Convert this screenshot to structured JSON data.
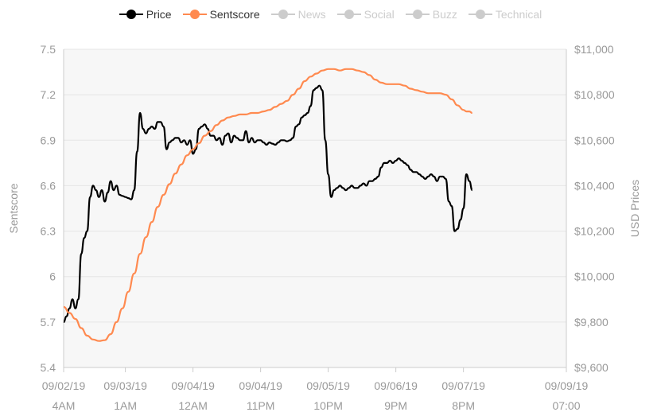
{
  "chart_data": {
    "type": "line",
    "legend": {
      "placement": "top-center",
      "items": [
        {
          "name": "Price",
          "color": "#000000",
          "active": true
        },
        {
          "name": "Sentscore",
          "color": "#ff8a50",
          "active": true
        },
        {
          "name": "News",
          "color": "#cccccc",
          "active": false
        },
        {
          "name": "Social",
          "color": "#cccccc",
          "active": false
        },
        {
          "name": "Buzz",
          "color": "#cccccc",
          "active": false
        },
        {
          "name": "Technical",
          "color": "#cccccc",
          "active": false
        }
      ]
    },
    "y_left": {
      "label": "Sentscore",
      "range": [
        5.4,
        7.5
      ],
      "ticks": [
        "7.5",
        "7.2",
        "6.9",
        "6.6",
        "6.3",
        "6",
        "5.7",
        "5.4"
      ]
    },
    "y_right": {
      "label": "USD Prices",
      "range": [
        9600,
        11000
      ],
      "ticks": [
        "$11,000",
        "$10,800",
        "$10,600",
        "$10,400",
        "$10,200",
        "$10,000",
        "$9,800",
        "$9,600"
      ]
    },
    "x_ticks": [
      {
        "line1": "09/02/19",
        "line2": "4AM",
        "t": 0
      },
      {
        "line1": "09/03/19",
        "line2": "1AM",
        "t": 21
      },
      {
        "line1": "09/04/19",
        "line2": "12AM",
        "t": 44
      },
      {
        "line1": "09/04/19",
        "line2": "11PM",
        "t": 67
      },
      {
        "line1": "09/05/19",
        "line2": "10PM",
        "t": 90
      },
      {
        "line1": "09/06/19",
        "line2": "9PM",
        "t": 113
      },
      {
        "line1": "09/07/19",
        "line2": "8PM",
        "t": 136
      },
      {
        "line1": "09/09/19",
        "line2": "07:00",
        "t": 171
      }
    ],
    "grid": true,
    "series": [
      {
        "name": "Price",
        "color": "#000000",
        "axis": "right",
        "points": [
          [
            0,
            9800
          ],
          [
            1,
            9825
          ],
          [
            2,
            9860
          ],
          [
            3,
            9900
          ],
          [
            4,
            9860
          ],
          [
            5,
            9900
          ],
          [
            6,
            10100
          ],
          [
            7,
            10170
          ],
          [
            8,
            10200
          ],
          [
            9,
            10350
          ],
          [
            10,
            10400
          ],
          [
            11,
            10380
          ],
          [
            12,
            10350
          ],
          [
            13,
            10380
          ],
          [
            14,
            10330
          ],
          [
            15,
            10370
          ],
          [
            16,
            10420
          ],
          [
            17,
            10380
          ],
          [
            18,
            10400
          ],
          [
            19,
            10360
          ],
          [
            20,
            10355
          ],
          [
            21,
            10350
          ],
          [
            22,
            10345
          ],
          [
            23,
            10340
          ],
          [
            24,
            10380
          ],
          [
            25,
            10550
          ],
          [
            26,
            10720
          ],
          [
            27,
            10650
          ],
          [
            28,
            10630
          ],
          [
            29,
            10650
          ],
          [
            30,
            10660
          ],
          [
            31,
            10650
          ],
          [
            32,
            10680
          ],
          [
            33,
            10680
          ],
          [
            34,
            10660
          ],
          [
            35,
            10560
          ],
          [
            36,
            10590
          ],
          [
            37,
            10600
          ],
          [
            38,
            10610
          ],
          [
            39,
            10610
          ],
          [
            40,
            10590
          ],
          [
            41,
            10600
          ],
          [
            42,
            10580
          ],
          [
            43,
            10600
          ],
          [
            44,
            10540
          ],
          [
            45,
            10560
          ],
          [
            46,
            10650
          ],
          [
            47,
            10660
          ],
          [
            48,
            10670
          ],
          [
            49,
            10650
          ],
          [
            50,
            10620
          ],
          [
            51,
            10620
          ],
          [
            52,
            10600
          ],
          [
            53,
            10610
          ],
          [
            54,
            10580
          ],
          [
            55,
            10620
          ],
          [
            56,
            10630
          ],
          [
            57,
            10590
          ],
          [
            58,
            10620
          ],
          [
            59,
            10610
          ],
          [
            60,
            10600
          ],
          [
            61,
            10600
          ],
          [
            62,
            10640
          ],
          [
            63,
            10590
          ],
          [
            64,
            10610
          ],
          [
            65,
            10590
          ],
          [
            66,
            10600
          ],
          [
            67,
            10600
          ],
          [
            68,
            10590
          ],
          [
            69,
            10580
          ],
          [
            70,
            10590
          ],
          [
            71,
            10585
          ],
          [
            72,
            10580
          ],
          [
            73,
            10590
          ],
          [
            74,
            10600
          ],
          [
            75,
            10600
          ],
          [
            76,
            10595
          ],
          [
            77,
            10600
          ],
          [
            78,
            10610
          ],
          [
            79,
            10660
          ],
          [
            80,
            10670
          ],
          [
            81,
            10700
          ],
          [
            82,
            10710
          ],
          [
            83,
            10720
          ],
          [
            84,
            10750
          ],
          [
            85,
            10820
          ],
          [
            86,
            10830
          ],
          [
            87,
            10840
          ],
          [
            88,
            10820
          ],
          [
            89,
            10600
          ],
          [
            90,
            10450
          ],
          [
            91,
            10350
          ],
          [
            92,
            10380
          ],
          [
            93,
            10390
          ],
          [
            94,
            10400
          ],
          [
            95,
            10390
          ],
          [
            96,
            10380
          ],
          [
            97,
            10390
          ],
          [
            98,
            10400
          ],
          [
            99,
            10390
          ],
          [
            100,
            10390
          ],
          [
            101,
            10400
          ],
          [
            102,
            10410
          ],
          [
            103,
            10400
          ],
          [
            104,
            10420
          ],
          [
            105,
            10420
          ],
          [
            106,
            10430
          ],
          [
            107,
            10440
          ],
          [
            108,
            10480
          ],
          [
            109,
            10500
          ],
          [
            110,
            10500
          ],
          [
            111,
            10510
          ],
          [
            112,
            10500
          ],
          [
            113,
            10510
          ],
          [
            114,
            10520
          ],
          [
            115,
            10510
          ],
          [
            116,
            10500
          ],
          [
            117,
            10490
          ],
          [
            118,
            10470
          ],
          [
            119,
            10460
          ],
          [
            120,
            10460
          ],
          [
            121,
            10450
          ],
          [
            122,
            10440
          ],
          [
            123,
            10430
          ],
          [
            124,
            10440
          ],
          [
            125,
            10450
          ],
          [
            126,
            10440
          ],
          [
            127,
            10420
          ],
          [
            128,
            10440
          ],
          [
            129,
            10440
          ],
          [
            130,
            10430
          ],
          [
            131,
            10330
          ],
          [
            132,
            10310
          ],
          [
            133,
            10200
          ],
          [
            134,
            10210
          ],
          [
            135,
            10250
          ],
          [
            136,
            10300
          ],
          [
            137,
            10450
          ],
          [
            138,
            10420
          ],
          [
            139,
            10380
          ]
        ]
      },
      {
        "name": "Sentscore",
        "color": "#ff8a50",
        "axis": "left",
        "points": [
          [
            0,
            5.8
          ],
          [
            2,
            5.76
          ],
          [
            4,
            5.72
          ],
          [
            6,
            5.66
          ],
          [
            8,
            5.61
          ],
          [
            10,
            5.585
          ],
          [
            12,
            5.575
          ],
          [
            14,
            5.58
          ],
          [
            16,
            5.62
          ],
          [
            18,
            5.7
          ],
          [
            20,
            5.79
          ],
          [
            22,
            5.9
          ],
          [
            24,
            6.02
          ],
          [
            26,
            6.15
          ],
          [
            28,
            6.26
          ],
          [
            30,
            6.36
          ],
          [
            32,
            6.46
          ],
          [
            34,
            6.54
          ],
          [
            36,
            6.61
          ],
          [
            38,
            6.68
          ],
          [
            40,
            6.74
          ],
          [
            42,
            6.8
          ],
          [
            44,
            6.84
          ],
          [
            46,
            6.88
          ],
          [
            48,
            6.93
          ],
          [
            50,
            6.96
          ],
          [
            52,
            7.0
          ],
          [
            54,
            7.03
          ],
          [
            56,
            7.05
          ],
          [
            58,
            7.06
          ],
          [
            60,
            7.07
          ],
          [
            62,
            7.07
          ],
          [
            64,
            7.08
          ],
          [
            66,
            7.08
          ],
          [
            68,
            7.09
          ],
          [
            70,
            7.1
          ],
          [
            72,
            7.12
          ],
          [
            74,
            7.14
          ],
          [
            76,
            7.16
          ],
          [
            78,
            7.2
          ],
          [
            80,
            7.24
          ],
          [
            82,
            7.29
          ],
          [
            84,
            7.32
          ],
          [
            86,
            7.34
          ],
          [
            88,
            7.36
          ],
          [
            90,
            7.37
          ],
          [
            92,
            7.37
          ],
          [
            94,
            7.36
          ],
          [
            96,
            7.37
          ],
          [
            98,
            7.37
          ],
          [
            100,
            7.36
          ],
          [
            102,
            7.35
          ],
          [
            104,
            7.33
          ],
          [
            106,
            7.3
          ],
          [
            108,
            7.28
          ],
          [
            110,
            7.27
          ],
          [
            112,
            7.27
          ],
          [
            114,
            7.27
          ],
          [
            116,
            7.26
          ],
          [
            118,
            7.24
          ],
          [
            120,
            7.23
          ],
          [
            122,
            7.22
          ],
          [
            124,
            7.21
          ],
          [
            126,
            7.21
          ],
          [
            128,
            7.21
          ],
          [
            130,
            7.2
          ],
          [
            132,
            7.17
          ],
          [
            134,
            7.13
          ],
          [
            136,
            7.1
          ],
          [
            137,
            7.09
          ],
          [
            138,
            7.09
          ],
          [
            139,
            7.08
          ]
        ]
      }
    ]
  }
}
